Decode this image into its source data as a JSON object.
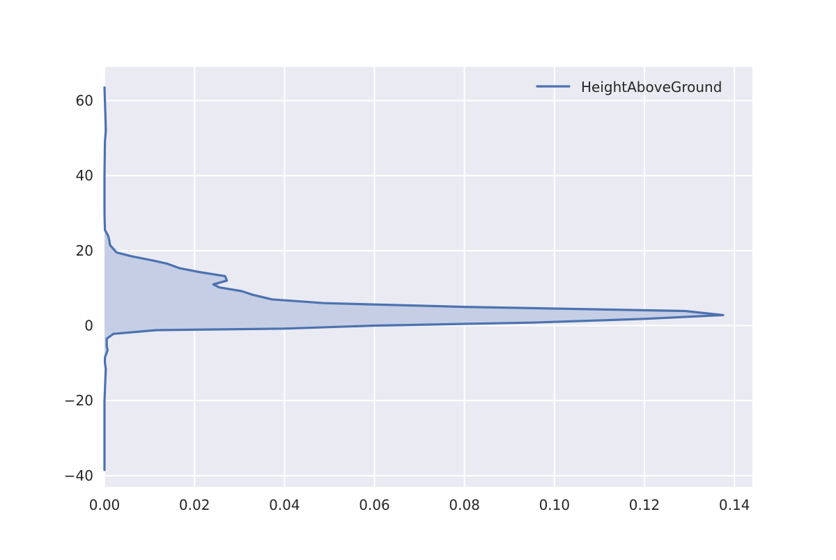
{
  "chart_data": {
    "type": "area",
    "orientation": "horizontal",
    "title": "",
    "xlabel": "",
    "ylabel": "",
    "xlim": [
      0,
      0.144
    ],
    "ylim": [
      -43,
      69
    ],
    "x_ticks": [
      0.0,
      0.02,
      0.04,
      0.06,
      0.08,
      0.1,
      0.12,
      0.14
    ],
    "x_tick_labels": [
      "0.00",
      "0.02",
      "0.04",
      "0.06",
      "0.08",
      "0.10",
      "0.12",
      "0.14"
    ],
    "y_ticks": [
      -40,
      -20,
      0,
      20,
      40,
      60
    ],
    "y_tick_labels": [
      "−40",
      "−20",
      "0",
      "20",
      "40",
      "60"
    ],
    "grid": true,
    "legend_position": "top-right",
    "colors": {
      "background": "#EAEAF2",
      "grid": "#FFFFFF",
      "line": "#4C72B0",
      "fill": "#C3CCE3"
    },
    "series": [
      {
        "name": "HeightAboveGround",
        "note_axes": "density on horizontal axis, height on vertical axis",
        "points": [
          {
            "height": 63.5,
            "density": 0.0
          },
          {
            "height": 56.0,
            "density": 0.0002
          },
          {
            "height": 52.0,
            "density": 0.0003
          },
          {
            "height": 49.0,
            "density": 0.0001
          },
          {
            "height": 40.0,
            "density": 0.0
          },
          {
            "height": 30.0,
            "density": 0.0
          },
          {
            "height": 25.5,
            "density": 0.0001
          },
          {
            "height": 24.0,
            "density": 0.0008
          },
          {
            "height": 22.5,
            "density": 0.0011
          },
          {
            "height": 21.5,
            "density": 0.0012
          },
          {
            "height": 19.5,
            "density": 0.0027
          },
          {
            "height": 18.5,
            "density": 0.006
          },
          {
            "height": 17.3,
            "density": 0.011
          },
          {
            "height": 16.5,
            "density": 0.014
          },
          {
            "height": 15.3,
            "density": 0.0167
          },
          {
            "height": 14.3,
            "density": 0.021
          },
          {
            "height": 13.2,
            "density": 0.0268
          },
          {
            "height": 12.0,
            "density": 0.0272
          },
          {
            "height": 11.0,
            "density": 0.0242
          },
          {
            "height": 10.2,
            "density": 0.0255
          },
          {
            "height": 9.2,
            "density": 0.0305
          },
          {
            "height": 8.2,
            "density": 0.033
          },
          {
            "height": 7.0,
            "density": 0.0372
          },
          {
            "height": 6.0,
            "density": 0.0488
          },
          {
            "height": 5.0,
            "density": 0.08
          },
          {
            "height": 3.9,
            "density": 0.129
          },
          {
            "height": 2.8,
            "density": 0.1375
          },
          {
            "height": 1.8,
            "density": 0.12
          },
          {
            "height": 0.8,
            "density": 0.095
          },
          {
            "height": 0.0,
            "density": 0.06
          },
          {
            "height": -0.8,
            "density": 0.04
          },
          {
            "height": -1.2,
            "density": 0.0115
          },
          {
            "height": -2.2,
            "density": 0.002
          },
          {
            "height": -3.5,
            "density": 0.0005
          },
          {
            "height": -5.5,
            "density": 0.0005
          },
          {
            "height": -6.5,
            "density": 0.0007
          },
          {
            "height": -8.5,
            "density": 0.0001
          },
          {
            "height": -10.0,
            "density": 0.0001
          },
          {
            "height": -11.5,
            "density": 0.0003
          },
          {
            "height": -14.0,
            "density": 0.0002
          },
          {
            "height": -20.0,
            "density": 0.0
          },
          {
            "height": -38.5,
            "density": 0.0
          }
        ]
      }
    ]
  }
}
